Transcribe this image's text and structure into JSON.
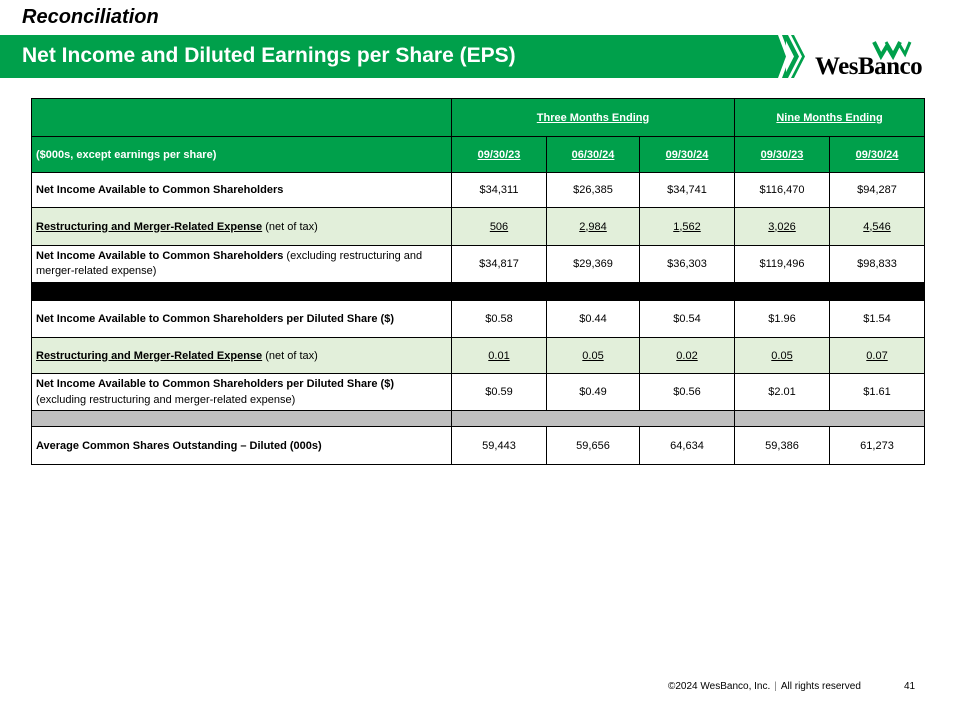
{
  "header": {
    "section": "Reconciliation",
    "title": "Net Income and Diluted Earnings per Share (EPS)",
    "logo_text": "WesBanco",
    "colors": {
      "brand_green": "#00a04b",
      "shade_green": "#e2efda",
      "grey_band": "#bfbfbf"
    }
  },
  "table": {
    "unit_label": "($000s, except earnings per share)",
    "groups": {
      "three_months": "Three Months Ending",
      "nine_months": "Nine Months Ending"
    },
    "columns": [
      "09/30/23",
      "06/30/24",
      "09/30/24",
      "09/30/23",
      "09/30/24"
    ],
    "rows": [
      {
        "label": "Net Income Available to Common Shareholders",
        "sub": "",
        "values": [
          "$34,311",
          "$26,385",
          "$34,741",
          "$116,470",
          "$94,287"
        ]
      },
      {
        "label": "Restructuring and Merger-Related Expense",
        "sub": " (net of tax)",
        "values": [
          "506",
          "2,984",
          "1,562",
          "3,026",
          "4,546"
        ]
      },
      {
        "label": "Net Income Available to Common Shareholders",
        "sub": " (excluding restructuring and merger-related expense)",
        "values": [
          "$34,817",
          "$29,369",
          "$36,303",
          "$119,496",
          "$98,833"
        ]
      },
      {
        "label": "Net Income Available to Common Shareholders per Diluted Share ($)",
        "sub": "",
        "values": [
          "$0.58",
          "$0.44",
          "$0.54",
          "$1.96",
          "$1.54"
        ]
      },
      {
        "label": "Restructuring and Merger-Related Expense",
        "sub": " (net of tax)",
        "values": [
          "0.01",
          "0.05",
          "0.02",
          "0.05",
          "0.07"
        ]
      },
      {
        "label": "Net Income Available to Common Shareholders per Diluted Share ($)",
        "sub": "(excluding restructuring and merger-related expense)",
        "values": [
          "$0.59",
          "$0.49",
          "$0.56",
          "$2.01",
          "$1.61"
        ]
      },
      {
        "label": "Average Common Shares Outstanding – Diluted (000s)",
        "sub": "",
        "values": [
          "59,443",
          "59,656",
          "64,634",
          "59,386",
          "61,273"
        ]
      }
    ]
  },
  "footer": {
    "copyright": "©2024 WesBanco, Inc.",
    "separator": "|",
    "rights": "All rights reserved",
    "page": "41"
  }
}
